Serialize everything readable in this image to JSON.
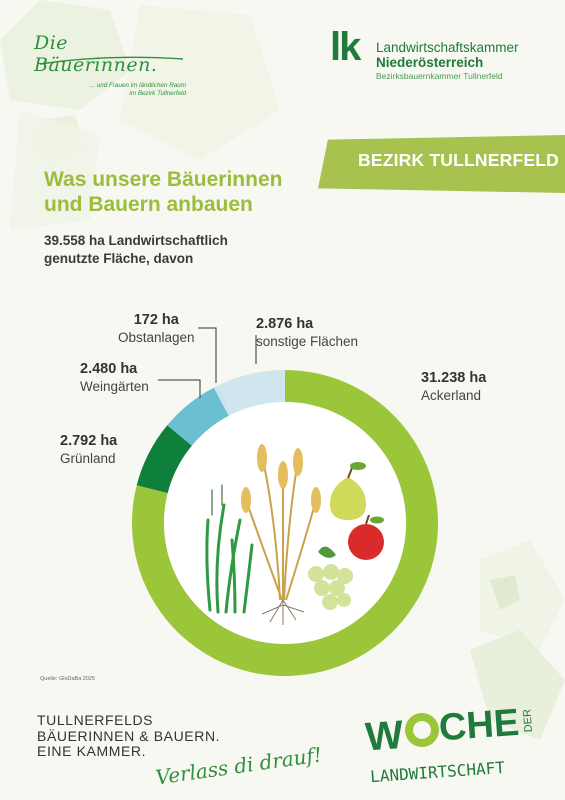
{
  "header": {
    "left_logo": {
      "name": "Die Bäuerinnen.",
      "tagline_line1": "... und Frauen im ländlichen Raum",
      "tagline_line2": "im Bezirk Tullnerfeld"
    },
    "right_logo": {
      "mark": "lk",
      "line1": "Landwirtschaftskammer",
      "line2": "Niederösterreich",
      "line3": "Bezirksbauernkammer Tullnerfeld"
    },
    "banner": "BEZIRK TULLNERFELD"
  },
  "title_line1": "Was unsere Bäuerinnen",
  "title_line2": "und Bauern anbauen",
  "subtitle_line1": "39.558 ha Landwirtschaftlich",
  "subtitle_line2": "genutzte Fläche, davon",
  "chart_data": {
    "type": "pie",
    "unit": "ha",
    "categories": [
      "Ackerland",
      "Grünland",
      "Weingärten",
      "Obstanlagen",
      "sonstige Flächen"
    ],
    "values": [
      31238,
      2792,
      2480,
      172,
      2876
    ],
    "value_labels": [
      "31.238 ha",
      "2.792 ha",
      "2.480 ha",
      "172 ha",
      "2.876 ha"
    ],
    "colors": [
      "#9cc63a",
      "#0f7f3c",
      "#6bbfd1",
      "#c8e3ec",
      "#cfe6ee"
    ]
  },
  "source": "Quelle: GloDaBa 2025",
  "footer": {
    "line1": "TULLNERFELDS",
    "line2": "BÄUERINNEN & BAUERN.",
    "line3": "EINE KAMMER.",
    "script": "Verlass di drauf!",
    "woche_a": "W",
    "woche_b": "CHE",
    "woche_der": "DER",
    "woche_bottom": "LANDWIRTSCHAFT"
  },
  "colors": {
    "accent_green": "#9cbd3b",
    "dark_green": "#1f7a3b"
  }
}
